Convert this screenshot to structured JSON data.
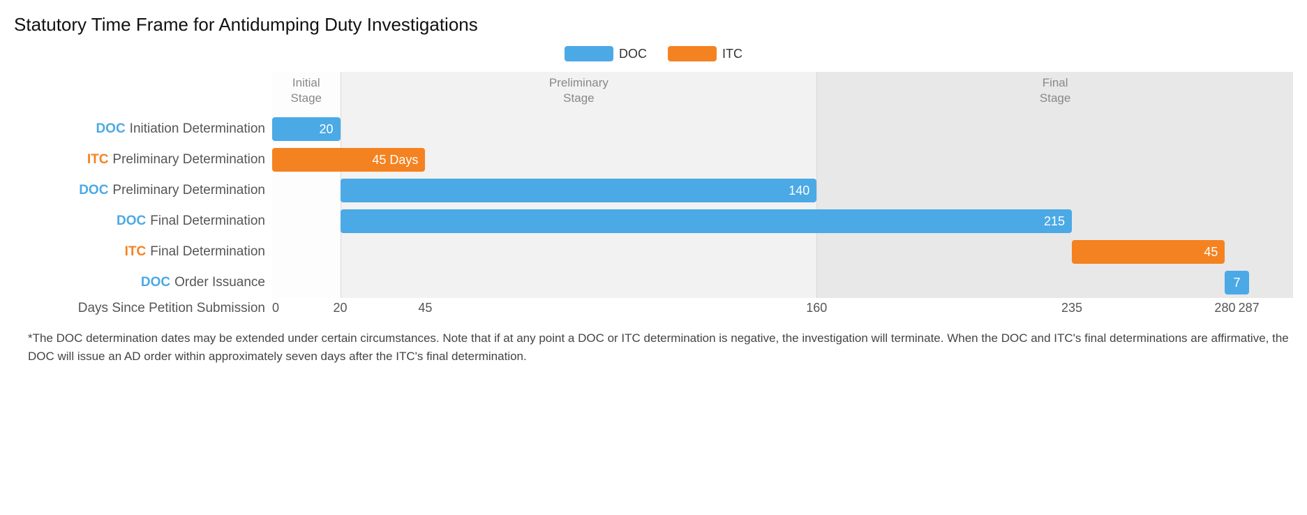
{
  "title": "Statutory Time Frame for Antidumping Duty Investigations",
  "legend": {
    "doc": {
      "label": "DOC",
      "color": "#4ba9e6"
    },
    "itc": {
      "label": "ITC",
      "color": "#f58220"
    }
  },
  "xaxis": {
    "label": "Days Since Petition Submission",
    "min": 0,
    "max": 300,
    "ticks": [
      0,
      20,
      45,
      160,
      235,
      280,
      287
    ]
  },
  "stages": {
    "bg_colors": [
      "#fdfdfd",
      "#f2f2f2",
      "#e8e8e8"
    ],
    "list": [
      {
        "label": "Initial\nStage",
        "start": 0,
        "end": 20
      },
      {
        "label": "Preliminary\nStage",
        "start": 20,
        "end": 160
      },
      {
        "label": "Final\nStage",
        "start": 160,
        "end": 300
      }
    ]
  },
  "rows": [
    {
      "agency": "DOC",
      "label": "Initiation Determination",
      "start": 0,
      "end": 20,
      "value": "20",
      "color": "#4ba9e6"
    },
    {
      "agency": "ITC",
      "label": "Preliminary Determination",
      "start": 0,
      "end": 45,
      "value": "45 Days",
      "color": "#f58220"
    },
    {
      "agency": "DOC",
      "label": "Preliminary Determination",
      "start": 20,
      "end": 160,
      "value": "140",
      "color": "#4ba9e6"
    },
    {
      "agency": "DOC",
      "label": "Final Determination",
      "start": 20,
      "end": 235,
      "value": "215",
      "color": "#4ba9e6"
    },
    {
      "agency": "ITC",
      "label": "Final Determination",
      "start": 235,
      "end": 280,
      "value": "45",
      "color": "#f58220"
    },
    {
      "agency": "DOC",
      "label": "Order Issuance",
      "start": 280,
      "end": 287,
      "value": "7",
      "color": "#4ba9e6"
    }
  ],
  "agency_colors": {
    "DOC": "#4ba9e6",
    "ITC": "#f58220"
  },
  "footnote": "*The DOC determination dates may be extended under certain circumstances. Note that if at any point a DOC or ITC determination is negative, the investigation will terminate. When the DOC and ITC's final determinations are affirmative, the DOC will issue an AD order within approximately seven days after the ITC's final determination."
}
